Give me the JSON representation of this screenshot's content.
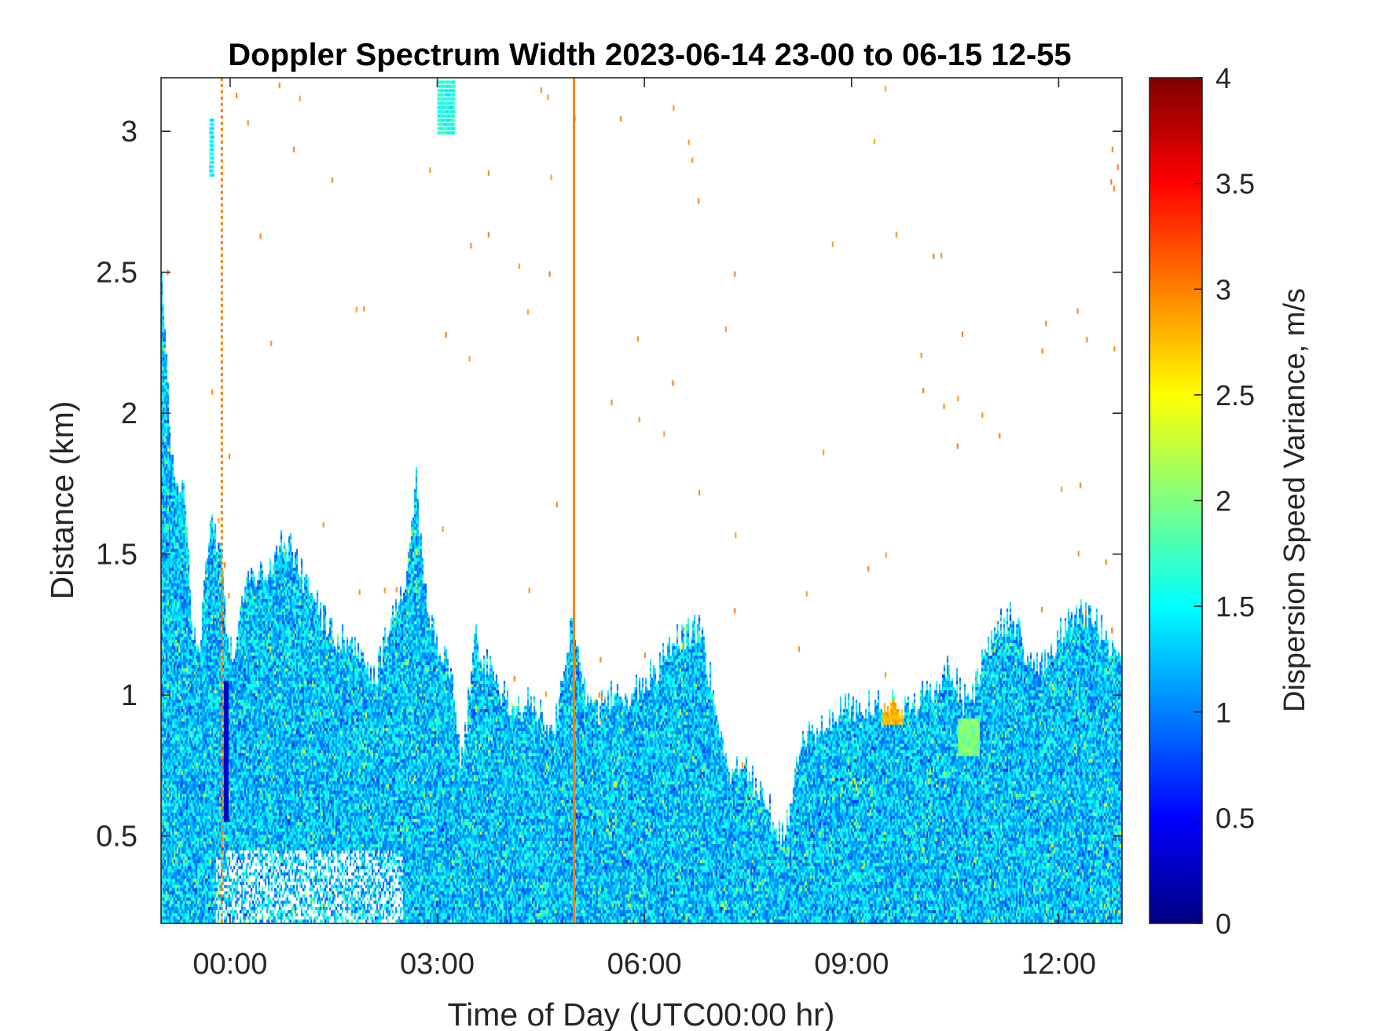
{
  "chart_data": {
    "type": "heatmap",
    "title": "Doppler Spectrum Width 2023-06-14 23-00 to 06-15 12-55",
    "xlabel": "Time of Day (UTC00:00 hr)",
    "ylabel": "Distance (km)",
    "colorbar_label": "Dispersion Speed Variance, m/s",
    "colormap": "jet",
    "colors": {
      "background": "#ffffff",
      "axis": "#262626",
      "spike_line": "#ff9a00",
      "jet_dark_blue": "#00008f",
      "jet_cyan": "#00ffff",
      "jet_yellow": "#ffff00",
      "jet_dark_red": "#800000"
    },
    "xlim_hours_from_start": [
      0,
      13.917
    ],
    "x_ticks": [
      {
        "label": "00:00",
        "hours_from_start": 1
      },
      {
        "label": "03:00",
        "hours_from_start": 4
      },
      {
        "label": "06:00",
        "hours_from_start": 7
      },
      {
        "label": "09:00",
        "hours_from_start": 10
      },
      {
        "label": "12:00",
        "hours_from_start": 13
      }
    ],
    "ylim": [
      0.19,
      3.19
    ],
    "y_ticks": [
      0.5,
      1,
      1.5,
      2,
      2.5,
      3
    ],
    "y_tick_labels": [
      "0.5",
      "1",
      "1.5",
      "2",
      "2.5",
      "3"
    ],
    "clim": [
      0,
      4
    ],
    "colorbar_ticks": [
      0,
      0.5,
      1,
      1.5,
      2,
      2.5,
      3,
      3.5,
      4
    ],
    "colorbar_tick_labels": [
      "0",
      "0.5",
      "1",
      "1.5",
      "2",
      "2.5",
      "3",
      "3.5",
      "4"
    ],
    "echo_top_km": [
      {
        "t": 0.0,
        "top": 2.5
      },
      {
        "t": 0.15,
        "top": 1.85
      },
      {
        "t": 0.35,
        "top": 1.7
      },
      {
        "t": 0.45,
        "top": 1.25
      },
      {
        "t": 0.55,
        "top": 1.1
      },
      {
        "t": 0.7,
        "top": 1.6
      },
      {
        "t": 0.85,
        "top": 1.55
      },
      {
        "t": 0.95,
        "top": 1.2
      },
      {
        "t": 1.05,
        "top": 1.15
      },
      {
        "t": 1.25,
        "top": 1.4
      },
      {
        "t": 1.5,
        "top": 1.45
      },
      {
        "t": 1.8,
        "top": 1.55
      },
      {
        "t": 2.1,
        "top": 1.4
      },
      {
        "t": 2.4,
        "top": 1.25
      },
      {
        "t": 2.8,
        "top": 1.15
      },
      {
        "t": 3.1,
        "top": 1.05
      },
      {
        "t": 3.3,
        "top": 1.25
      },
      {
        "t": 3.55,
        "top": 1.4
      },
      {
        "t": 3.7,
        "top": 1.75
      },
      {
        "t": 3.85,
        "top": 1.3
      },
      {
        "t": 4.0,
        "top": 1.2
      },
      {
        "t": 4.2,
        "top": 1.1
      },
      {
        "t": 4.35,
        "top": 0.75
      },
      {
        "t": 4.55,
        "top": 1.2
      },
      {
        "t": 4.75,
        "top": 1.1
      },
      {
        "t": 4.95,
        "top": 1.0
      },
      {
        "t": 5.2,
        "top": 0.95
      },
      {
        "t": 5.4,
        "top": 1.0
      },
      {
        "t": 5.6,
        "top": 0.85
      },
      {
        "t": 5.8,
        "top": 1.0
      },
      {
        "t": 5.95,
        "top": 1.25
      },
      {
        "t": 6.1,
        "top": 1.05
      },
      {
        "t": 6.3,
        "top": 0.95
      },
      {
        "t": 6.55,
        "top": 1.0
      },
      {
        "t": 6.8,
        "top": 1.0
      },
      {
        "t": 7.0,
        "top": 1.05
      },
      {
        "t": 7.2,
        "top": 1.1
      },
      {
        "t": 7.5,
        "top": 1.2
      },
      {
        "t": 7.8,
        "top": 1.25
      },
      {
        "t": 8.0,
        "top": 1.0
      },
      {
        "t": 8.2,
        "top": 0.75
      },
      {
        "t": 8.5,
        "top": 0.72
      },
      {
        "t": 8.8,
        "top": 0.6
      },
      {
        "t": 8.98,
        "top": 0.5
      },
      {
        "t": 9.1,
        "top": 0.6
      },
      {
        "t": 9.3,
        "top": 0.85
      },
      {
        "t": 9.6,
        "top": 0.9
      },
      {
        "t": 9.9,
        "top": 0.95
      },
      {
        "t": 10.3,
        "top": 0.98
      },
      {
        "t": 10.7,
        "top": 0.95
      },
      {
        "t": 11.1,
        "top": 1.0
      },
      {
        "t": 11.4,
        "top": 1.1
      },
      {
        "t": 11.7,
        "top": 0.95
      },
      {
        "t": 12.0,
        "top": 1.2
      },
      {
        "t": 12.3,
        "top": 1.3
      },
      {
        "t": 12.6,
        "top": 1.1
      },
      {
        "t": 12.8,
        "top": 1.1
      },
      {
        "t": 13.1,
        "top": 1.25
      },
      {
        "t": 13.4,
        "top": 1.3
      },
      {
        "t": 13.7,
        "top": 1.2
      },
      {
        "t": 13.917,
        "top": 1.15
      }
    ],
    "typical_width_m_s": 1.3,
    "elevated_patches": [
      {
        "t_start": 10.45,
        "t_end": 10.75,
        "range_km": [
          0.9,
          0.98
        ],
        "value_m_s": 2.8
      },
      {
        "t_start": 11.55,
        "t_end": 11.85,
        "range_km": [
          0.78,
          0.92
        ],
        "value_m_s": 2.0
      }
    ],
    "vertical_spike_lines": [
      {
        "t": 0.88,
        "value_m_s": 3.0,
        "range_km": [
          0.19,
          3.19
        ],
        "style": "dashed"
      },
      {
        "t": 5.98,
        "value_m_s": 3.0,
        "range_km": [
          0.19,
          3.19
        ],
        "style": "solid"
      }
    ],
    "low_value_column": {
      "t": 0.95,
      "range_km": [
        0.55,
        1.05
      ],
      "value_m_s": 0.3
    },
    "isolated_echo": [
      {
        "t_start": 0.7,
        "t_end": 0.75,
        "range_km": [
          2.85,
          3.05
        ],
        "value_m_s": 1.5
      },
      {
        "t_start": 4.0,
        "t_end": 4.25,
        "range_km": [
          3.0,
          3.19
        ],
        "value_m_s": 1.6
      }
    ]
  }
}
